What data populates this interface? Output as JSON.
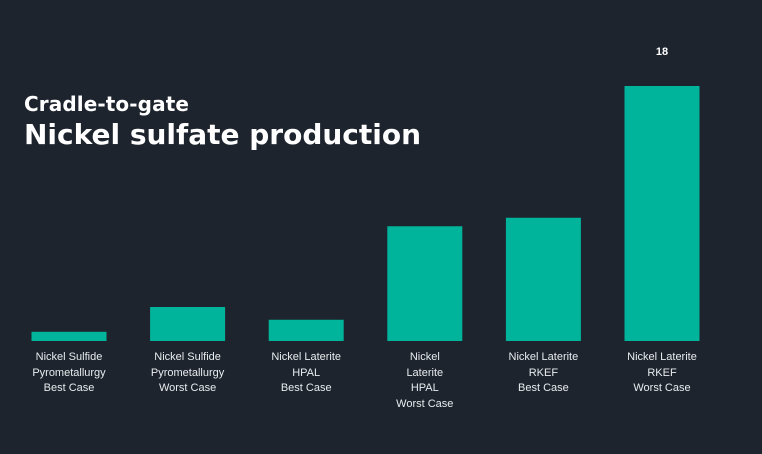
{
  "chart_data": {
    "type": "bar",
    "subtitle": "Cradle-to-gate",
    "title": "Nickel sulfate production",
    "categories": [
      [
        "Nickel Sulfide",
        "Pyrometallurgy",
        "Best Case"
      ],
      [
        "Nickel Sulfide",
        "Pyrometallurgy",
        "Worst Case"
      ],
      [
        "Nickel Laterite",
        "HPAL",
        "Best Case"
      ],
      [
        "Nickel",
        "Laterite",
        "HPAL",
        "Worst Case"
      ],
      [
        "Nickel Laterite",
        "RKEF",
        "Best Case"
      ],
      [
        "Nickel Laterite",
        "RKEF",
        "Worst Case"
      ]
    ],
    "values": [
      0.65,
      2.4,
      1.5,
      8.1,
      8.7,
      18
    ],
    "data_labels": [
      "",
      "",
      "",
      "",
      "",
      "18"
    ],
    "ylim": [
      0,
      18
    ],
    "bar_color": "#00b39b",
    "background": "#1d242d",
    "grid": false
  }
}
